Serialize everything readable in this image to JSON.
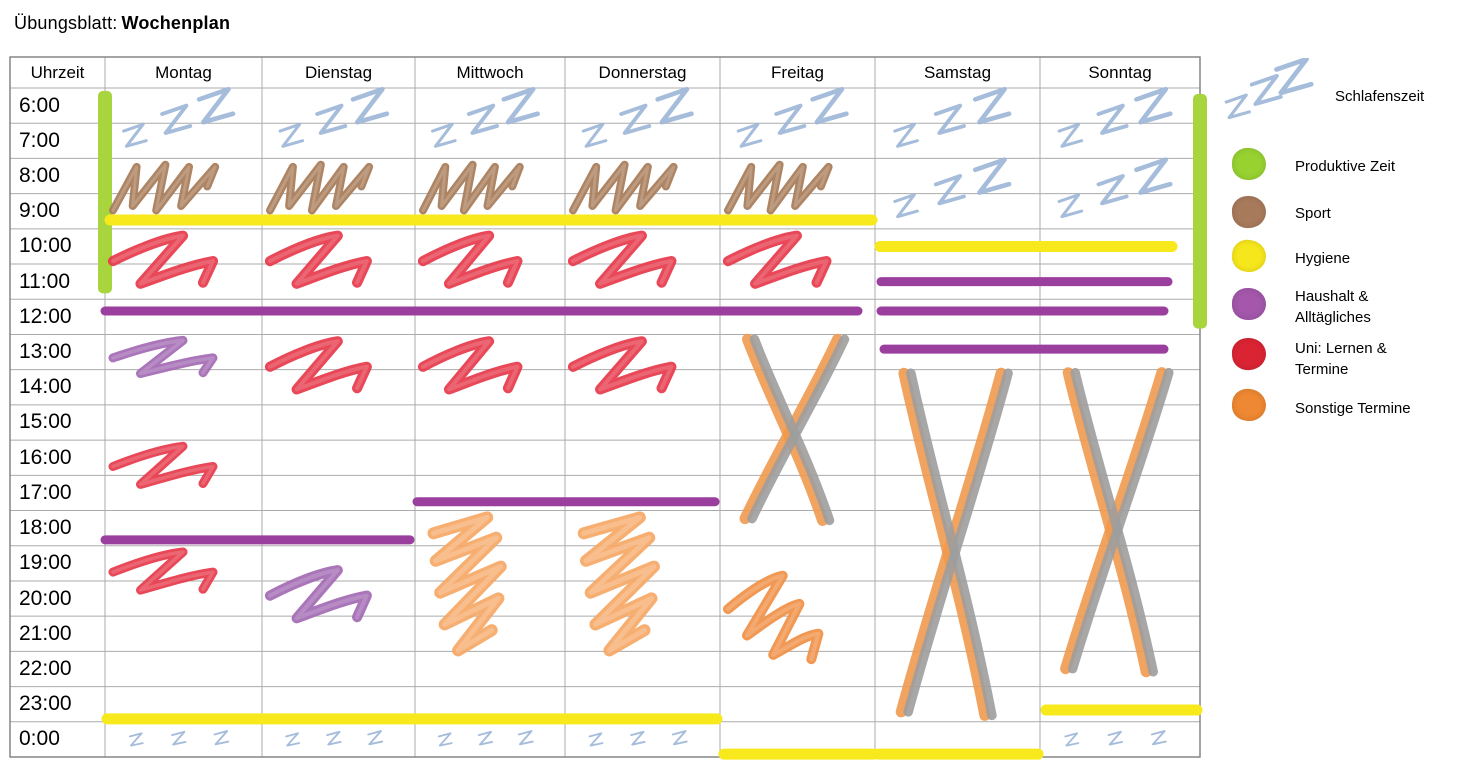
{
  "title": {
    "prefix": "Übungsblatt:",
    "name": "Wochenplan"
  },
  "table": {
    "time_header": "Uhrzeit",
    "days": [
      "Montag",
      "Dienstag",
      "Mittwoch",
      "Donnerstag",
      "Freitag",
      "Samstag",
      "Sonntag"
    ],
    "times": [
      "6:00",
      "7:00",
      "8:00",
      "9:00",
      "10:00",
      "11:00",
      "12:00",
      "13:00",
      "14:00",
      "15:00",
      "16:00",
      "17:00",
      "18:00",
      "19:00",
      "20:00",
      "21:00",
      "22:00",
      "23:00",
      "0:00"
    ]
  },
  "palette": {
    "sleep": "#9db6d8",
    "produktiv": "#a8d43e",
    "sport": "#aa7e5c",
    "hygiene": "#f7e91c",
    "haushalt": "#9b3f9f",
    "haushalt_scribble": "#a46cb4",
    "uni": "#e63a4b",
    "sonstige": "#f09147",
    "sonstige_dense": "#f6a765",
    "cancel_gray": "#9d9d9d",
    "cancel_orange": "#f0994f",
    "grid": "#ababab",
    "grid_outer": "#7e7e7e"
  },
  "legend": [
    {
      "icon": "zzz",
      "label": "Schlafenszeit",
      "category": "sleep",
      "color": "#9db6d8"
    },
    {
      "icon": "dot",
      "label": "Produktive Zeit",
      "category": "produktiv",
      "color": "#97d231"
    },
    {
      "icon": "dot",
      "label": "Sport",
      "category": "sport",
      "color": "#a87a5c"
    },
    {
      "icon": "dot",
      "label": "Hygiene",
      "category": "hygiene",
      "color": "#f6e71d"
    },
    {
      "icon": "dot",
      "label": "Haushalt &\nAlltägliches",
      "category": "haushalt",
      "color": "#a457ab"
    },
    {
      "icon": "dot",
      "label": "Uni: Lernen &\nTermine",
      "category": "uni",
      "color": "#da2433"
    },
    {
      "icon": "dot",
      "label": "Sonstige Termine",
      "category": "sonstige",
      "color": "#ee8832"
    }
  ],
  "annotations": [
    {
      "shape": "zzz",
      "category": "sleep",
      "day": "Montag",
      "from": "6:00",
      "to": "8:00"
    },
    {
      "shape": "zzz",
      "category": "sleep",
      "day": "Dienstag",
      "from": "6:00",
      "to": "8:00"
    },
    {
      "shape": "zzz",
      "category": "sleep",
      "day": "Mittwoch",
      "from": "6:00",
      "to": "8:00"
    },
    {
      "shape": "zzz",
      "category": "sleep",
      "day": "Donnerstag",
      "from": "6:00",
      "to": "8:00"
    },
    {
      "shape": "zzz",
      "category": "sleep",
      "day": "Freitag",
      "from": "6:00",
      "to": "8:00"
    },
    {
      "shape": "zzz",
      "category": "sleep",
      "day": "Samstag",
      "from": "6:00",
      "to": "8:00"
    },
    {
      "shape": "zzz",
      "category": "sleep",
      "day": "Sonntag",
      "from": "6:00",
      "to": "8:00"
    },
    {
      "shape": "zzz",
      "category": "sleep",
      "day": "Samstag",
      "from": "8:00",
      "to": "10:00"
    },
    {
      "shape": "zzz",
      "category": "sleep",
      "day": "Sonntag",
      "from": "8:00",
      "to": "10:00"
    },
    {
      "shape": "zzz",
      "category": "sleep",
      "day": "Montag",
      "from": "0:00",
      "to": "1:00"
    },
    {
      "shape": "zzz",
      "category": "sleep",
      "day": "Dienstag",
      "from": "0:00",
      "to": "1:00"
    },
    {
      "shape": "zzz",
      "category": "sleep",
      "day": "Mittwoch",
      "from": "0:00",
      "to": "1:00"
    },
    {
      "shape": "zzz",
      "category": "sleep",
      "day": "Donnerstag",
      "from": "0:00",
      "to": "1:00"
    },
    {
      "shape": "zzz",
      "category": "sleep",
      "day": "Sonntag",
      "from": "0:00",
      "to": "1:00"
    },
    {
      "shape": "vbar",
      "category": "produktiv",
      "day": "Montag",
      "edge": "left",
      "from": "6:05",
      "to": "11:50"
    },
    {
      "shape": "vbar",
      "category": "produktiv",
      "day": "Sonntag",
      "edge": "right",
      "from": "6:10",
      "to": "12:50"
    },
    {
      "shape": "mm",
      "category": "sport",
      "day": "Montag",
      "from": "8:05",
      "to": "9:40"
    },
    {
      "shape": "mm",
      "category": "sport",
      "day": "Dienstag",
      "from": "8:05",
      "to": "9:40"
    },
    {
      "shape": "mm",
      "category": "sport",
      "day": "Mittwoch",
      "from": "8:05",
      "to": "9:40"
    },
    {
      "shape": "mm",
      "category": "sport",
      "day": "Donnerstag",
      "from": "8:05",
      "to": "9:40"
    },
    {
      "shape": "mm",
      "category": "sport",
      "day": "Freitag",
      "from": "8:05",
      "to": "9:40"
    },
    {
      "shape": "hline",
      "category": "hygiene",
      "fromDay": "Montag",
      "toDay": "Freitag",
      "at": "9:45",
      "trim": [
        5,
        3
      ]
    },
    {
      "shape": "hline",
      "category": "hygiene",
      "fromDay": "Samstag",
      "toDay": "Sonntag",
      "at": "10:30",
      "trim": [
        5,
        28
      ]
    },
    {
      "shape": "hline",
      "category": "haushalt",
      "fromDay": "Montag",
      "toDay": "Freitag",
      "at": "12:20",
      "trim": [
        0,
        17
      ]
    },
    {
      "shape": "hline",
      "category": "haushalt",
      "fromDay": "Samstag",
      "toDay": "Sonntag",
      "at": "11:30",
      "trim": [
        6,
        32
      ]
    },
    {
      "shape": "hline",
      "category": "haushalt",
      "fromDay": "Samstag",
      "toDay": "Sonntag",
      "at": "12:20",
      "trim": [
        6,
        36
      ]
    },
    {
      "shape": "hline",
      "category": "haushalt",
      "fromDay": "Samstag",
      "toDay": "Sonntag",
      "at": "13:25",
      "trim": [
        9,
        36
      ]
    },
    {
      "shape": "hline",
      "category": "haushalt",
      "fromDay": "Mittwoch",
      "toDay": "Donnerstag",
      "at": "17:45",
      "trim": [
        2,
        5
      ]
    },
    {
      "shape": "hline",
      "category": "haushalt",
      "fromDay": "Montag",
      "toDay": "Dienstag",
      "at": "18:50",
      "trim": [
        0,
        5
      ]
    },
    {
      "shape": "hline",
      "category": "hygiene",
      "fromDay": "Montag",
      "toDay": "Donnerstag",
      "at": "23:55",
      "trim": [
        2,
        3
      ]
    },
    {
      "shape": "hline",
      "category": "hygiene",
      "fromDay": "Freitag",
      "toDay": "Freitag",
      "at": "0:55",
      "trim": [
        4,
        2
      ]
    },
    {
      "shape": "hline",
      "category": "hygiene",
      "fromDay": "Samstag",
      "toDay": "Samstag",
      "at": "0:55",
      "trim": [
        3,
        2
      ]
    },
    {
      "shape": "hline",
      "category": "hygiene",
      "fromDay": "Sonntag",
      "toDay": "Sonntag",
      "at": "23:40",
      "trim": [
        6,
        3
      ]
    },
    {
      "shape": "scribble",
      "category": "uni",
      "day": "Montag",
      "from": "10:00",
      "to": "11:50"
    },
    {
      "shape": "scribble",
      "category": "uni",
      "day": "Dienstag",
      "from": "10:00",
      "to": "11:50"
    },
    {
      "shape": "scribble",
      "category": "uni",
      "day": "Mittwoch",
      "from": "10:00",
      "to": "11:50"
    },
    {
      "shape": "scribble",
      "category": "uni",
      "day": "Donnerstag",
      "from": "10:00",
      "to": "11:50"
    },
    {
      "shape": "scribble",
      "category": "uni",
      "day": "Freitag",
      "from": "10:00",
      "to": "11:50"
    },
    {
      "shape": "scribble",
      "category": "uni",
      "day": "Dienstag",
      "from": "13:00",
      "to": "14:50"
    },
    {
      "shape": "scribble",
      "category": "uni",
      "day": "Mittwoch",
      "from": "13:00",
      "to": "14:50"
    },
    {
      "shape": "scribble",
      "category": "uni",
      "day": "Donnerstag",
      "from": "13:00",
      "to": "14:50"
    },
    {
      "shape": "scribble",
      "category": "uni",
      "day": "Montag",
      "from": "16:00",
      "to": "17:30"
    },
    {
      "shape": "scribble",
      "category": "uni",
      "day": "Montag",
      "from": "19:00",
      "to": "20:30"
    },
    {
      "shape": "scribble",
      "category": "haushalt",
      "day": "Montag",
      "from": "13:00",
      "to": "14:20"
    },
    {
      "shape": "scribble",
      "category": "haushalt",
      "day": "Dienstag",
      "from": "19:30",
      "to": "21:20"
    },
    {
      "shape": "dense",
      "category": "sonstige",
      "day": "Mittwoch",
      "from": "18:00",
      "to": "22:20"
    },
    {
      "shape": "dense",
      "category": "sonstige",
      "day": "Donnerstag",
      "from": "18:00",
      "to": "22:20"
    },
    {
      "shape": "scribble2",
      "category": "sonstige",
      "day": "Freitag",
      "from": "19:40",
      "to": "22:20"
    },
    {
      "shape": "xmark",
      "category": "cancel",
      "day": "Freitag",
      "from": "13:05",
      "to": "18:20"
    },
    {
      "shape": "xmark",
      "category": "cancel",
      "day": "Samstag",
      "from": "14:00",
      "to": "23:55"
    },
    {
      "shape": "xmark",
      "category": "cancel",
      "day": "Sonntag",
      "from": "14:00",
      "to": "22:40"
    }
  ]
}
